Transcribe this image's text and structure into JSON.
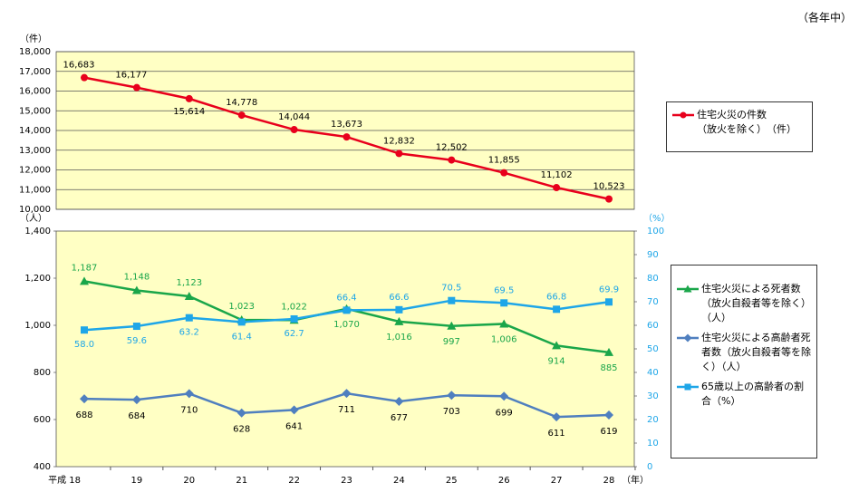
{
  "note": "（各年中）",
  "chart_data": [
    {
      "type": "line",
      "y_unit": "（件）",
      "ylim": [
        10000,
        18000
      ],
      "yticks": [
        {
          "value": 10000,
          "label": "10,000"
        },
        {
          "value": 11000,
          "label": "11,000"
        },
        {
          "value": 12000,
          "label": "12,000"
        },
        {
          "value": 13000,
          "label": "13,000"
        },
        {
          "value": 14000,
          "label": "14,000"
        },
        {
          "value": 15000,
          "label": "15,000"
        },
        {
          "value": 16000,
          "label": "16,000"
        },
        {
          "value": 17000,
          "label": "17,000"
        },
        {
          "value": 18000,
          "label": "18,000"
        }
      ],
      "grid": true,
      "series": [
        {
          "name": "住宅火災の件数\n（放火を除く）　（件）",
          "color": "#e8001c",
          "marker": "circle",
          "values": [
            16683,
            16177,
            15614,
            14778,
            14044,
            13673,
            12832,
            12502,
            11855,
            11102,
            10523
          ],
          "value_labels": [
            "16,683",
            "16,177",
            "15,614",
            "14,778",
            "14,044",
            "13,673",
            "12,832",
            "12,502",
            "11,855",
            "11,102",
            "10,523"
          ]
        }
      ]
    },
    {
      "type": "line",
      "y_unit": "（人）",
      "y2_unit": "（%）",
      "x_unit": "（年）",
      "categories": [
        "平成 18",
        "19",
        "20",
        "21",
        "22",
        "23",
        "24",
        "25",
        "26",
        "27",
        "28"
      ],
      "ylim": [
        400,
        1400
      ],
      "yticks": [
        400,
        600,
        800,
        {
          "value": 1000,
          "label": "1,000"
        },
        {
          "value": 1200,
          "label": "1,200"
        },
        {
          "value": 1400,
          "label": "1,400"
        }
      ],
      "y2lim": [
        0,
        100
      ],
      "y2ticks": [
        0,
        10,
        20,
        30,
        40,
        50,
        60,
        70,
        80,
        90,
        100
      ],
      "grid": false,
      "series": [
        {
          "name": "住宅火災による死者数（放火自殺者等を除く）（人）",
          "color": "#1aa64a",
          "marker": "triangle",
          "values": [
            1187,
            1148,
            1123,
            1023,
            1022,
            1070,
            1016,
            997,
            1006,
            914,
            885
          ],
          "value_labels": [
            "1,187",
            "1,148",
            "1,123",
            "1,023",
            "1,022",
            "1,070",
            "1,016",
            "997",
            "1,006",
            "914",
            "885"
          ]
        },
        {
          "name": "住宅火災による高齢者死者数（放火自殺者等を除く）（人）",
          "color": "#4f7fbf",
          "marker": "diamond",
          "values": [
            688,
            684,
            710,
            628,
            641,
            711,
            677,
            703,
            699,
            611,
            619
          ]
        },
        {
          "name": "65歳以上の高齢者の割合（%）",
          "color": "#1ea6e8",
          "marker": "square",
          "axis": "y2",
          "values": [
            58.0,
            59.6,
            63.2,
            61.4,
            62.7,
            66.4,
            66.6,
            70.5,
            69.5,
            66.8,
            69.9
          ],
          "value_labels": [
            "58.0",
            "59.6",
            "63.2",
            "61.4",
            "62.7",
            "66.4",
            "66.6",
            "70.5",
            "69.5",
            "66.8",
            "69.9"
          ]
        }
      ]
    }
  ]
}
